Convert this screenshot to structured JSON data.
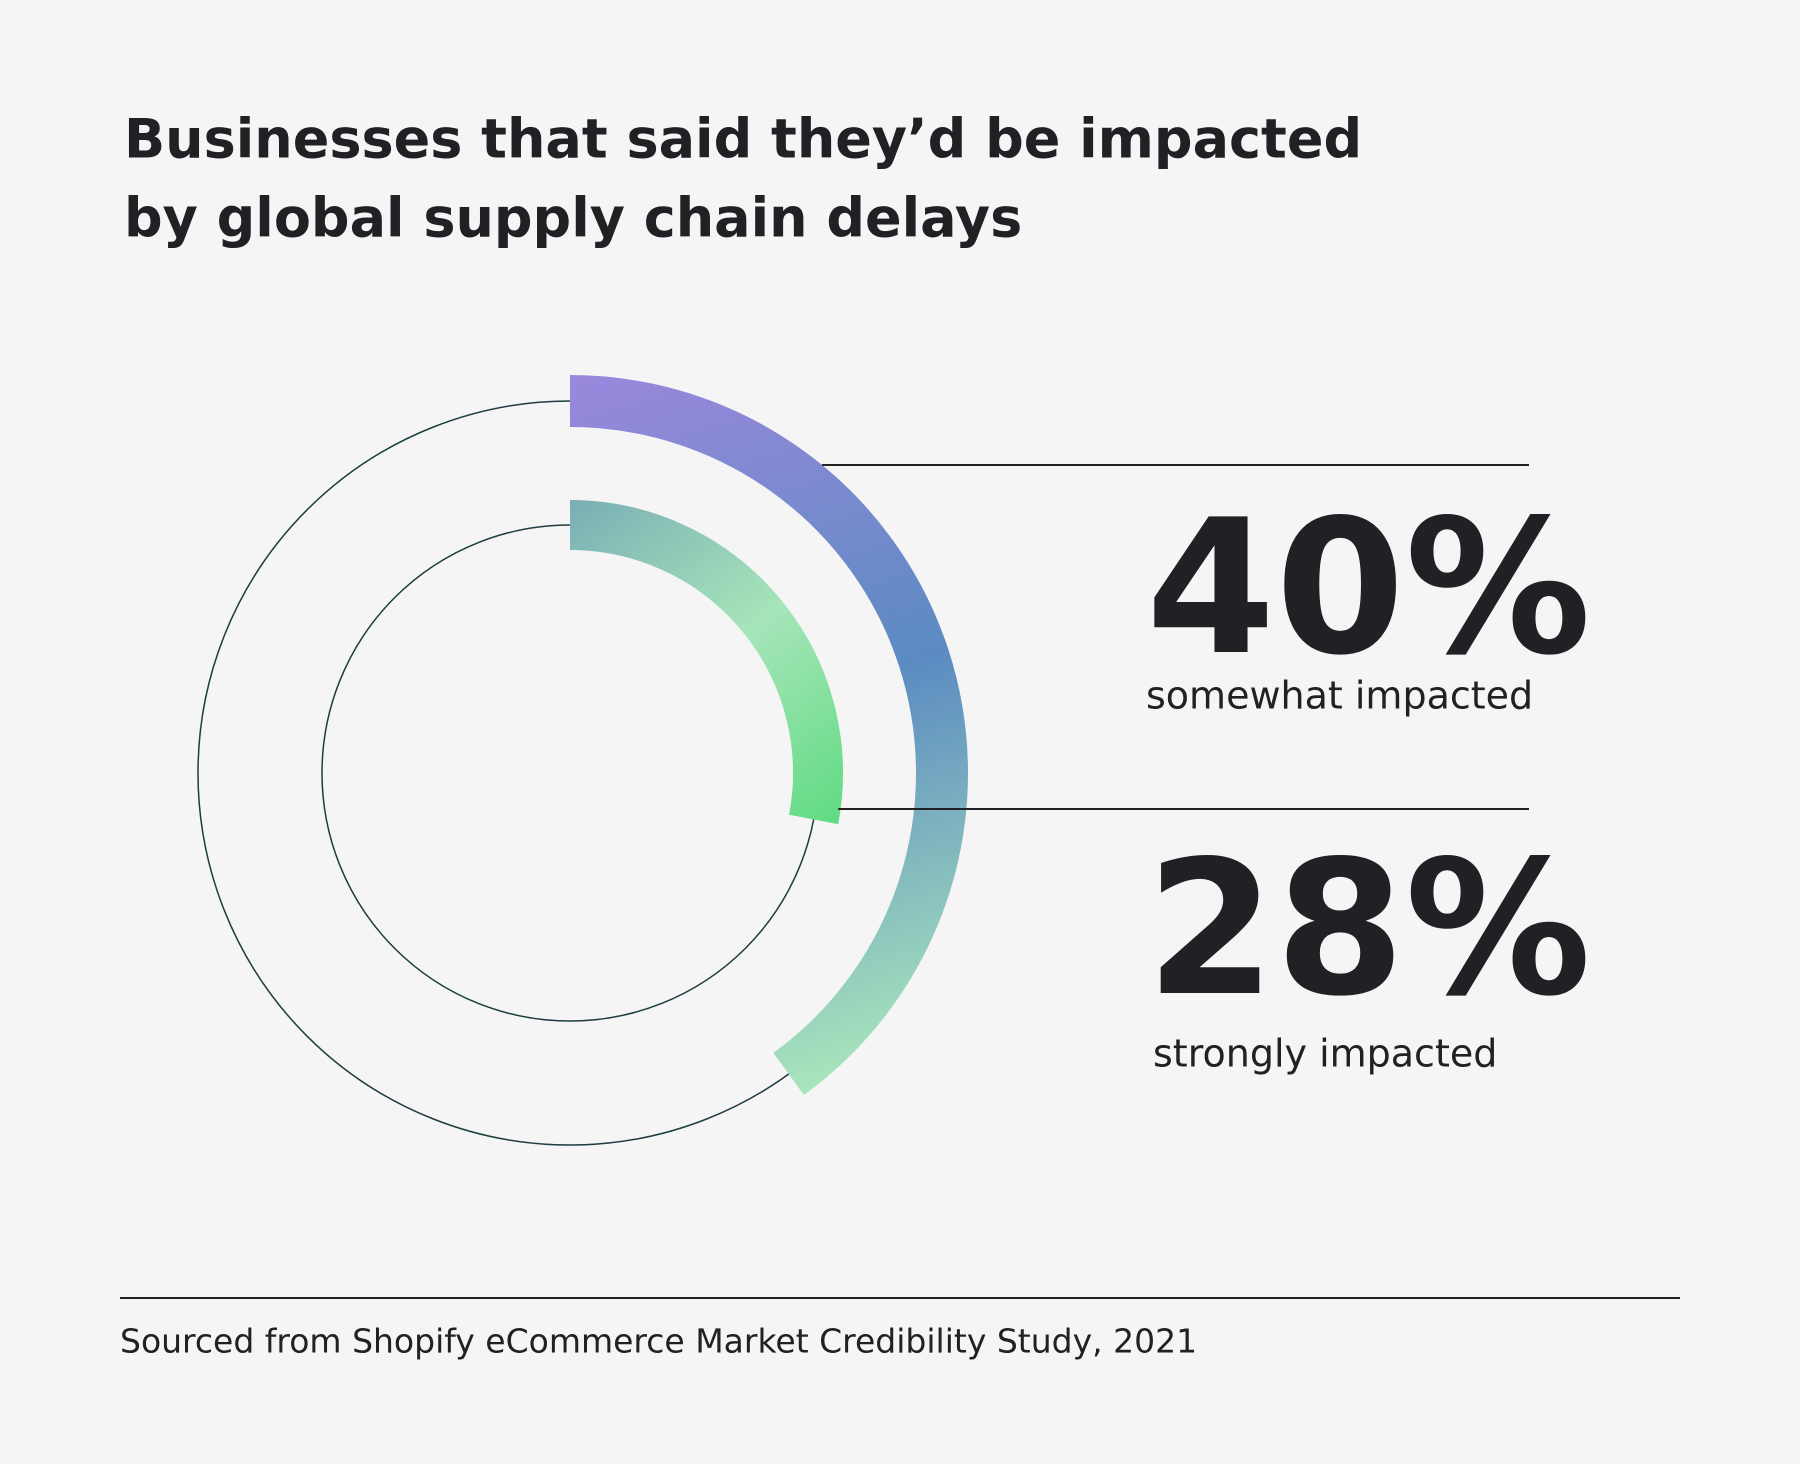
{
  "chart_data": {
    "type": "radial",
    "title": [
      "Businesses that said they’d be impacted",
      "by global supply chain delays"
    ],
    "categories": [
      "somewhat impacted",
      "strongly impacted"
    ],
    "values": [
      40,
      28
    ],
    "value_labels": [
      "40%",
      "28%"
    ],
    "ylim": [
      0,
      100
    ],
    "gradients": [
      [
        "#9a88dd",
        "#5b8bc2",
        "#a8e5bb"
      ],
      [
        "#7aaeb5",
        "#a6e5b9",
        "#5fdb81"
      ]
    ],
    "source": "Sourced from Shopify eCommerce Market Credibility Study, 2021"
  }
}
